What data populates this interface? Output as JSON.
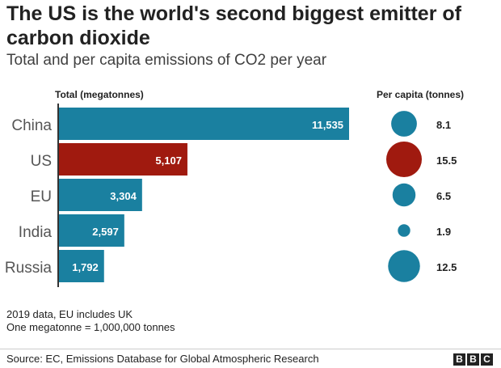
{
  "chart_data": {
    "type": "bar",
    "title": "The US is the world's second biggest emitter of carbon dioxide",
    "subtitle": "Total and per capita emissions of CO2 per year",
    "total_label": "Total (megatonnes)",
    "per_capita_label": "Per capita (tonnes)",
    "categories": [
      "China",
      "US",
      "EU",
      "India",
      "Russia"
    ],
    "series": [
      {
        "name": "Total (megatonnes)",
        "values": [
          11535,
          5107,
          3304,
          2597,
          1792
        ],
        "labels": [
          "11,535",
          "5,107",
          "3,304",
          "2,597",
          "1,792"
        ]
      },
      {
        "name": "Per capita (tonnes)",
        "values": [
          8.1,
          15.5,
          6.5,
          1.9,
          12.5
        ],
        "labels": [
          "8.1",
          "15.5",
          "6.5",
          "1.9",
          "12.5"
        ]
      }
    ],
    "highlight": "US",
    "colors": {
      "default": "#1a80a0",
      "highlight": "#a01a0f"
    }
  },
  "notes": [
    "2019 data, EU includes UK",
    "One megatonne = 1,000,000 tonnes"
  ],
  "source": "Source: EC, Emissions Database for Global Atmospheric Research",
  "logo": [
    "B",
    "B",
    "C"
  ]
}
